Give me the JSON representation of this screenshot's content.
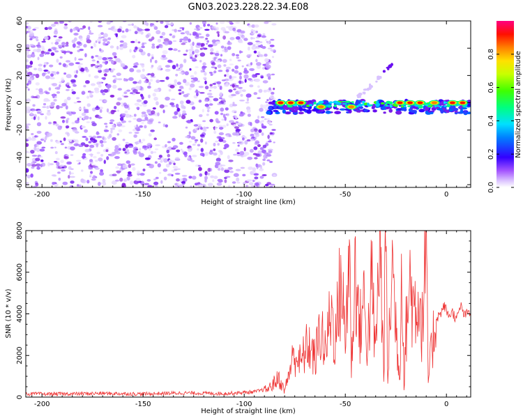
{
  "figure": {
    "title": "GN03.2023.228.22.34.E08"
  },
  "chart_data": [
    {
      "type": "heatmap",
      "xlabel": "Height of straight line (km)",
      "ylabel": "Frequency (Hz)",
      "xlim": [
        -208,
        12
      ],
      "ylim": [
        -62,
        60
      ],
      "xticks": [
        -200,
        -150,
        -100,
        -50,
        0
      ],
      "yticks": [
        -60,
        -40,
        -20,
        0,
        20,
        40,
        60
      ],
      "noise_region_x": [
        -208,
        -85
      ],
      "signal_band_x": [
        -88,
        12
      ],
      "signal_band_y": [
        -6,
        4
      ],
      "hot_spots": [
        {
          "x": -82,
          "y": 0,
          "value": 0.95
        },
        {
          "x": -77,
          "y": 0,
          "value": 0.95
        },
        {
          "x": -72,
          "y": 0,
          "value": 0.9
        },
        {
          "x": -62,
          "y": -3,
          "value": 0.8
        },
        {
          "x": -47,
          "y": -3,
          "value": 0.5
        },
        {
          "x": -23,
          "y": 0,
          "value": 0.9
        },
        {
          "x": -18,
          "y": 0,
          "value": 0.95
        },
        {
          "x": -13,
          "y": 0,
          "value": 0.95
        },
        {
          "x": -6,
          "y": 0,
          "value": 0.85
        },
        {
          "x": 3,
          "y": 0,
          "value": 0.9
        },
        {
          "x": 8,
          "y": 0,
          "value": 0.95
        }
      ],
      "streak": {
        "from": [
          -45,
          2
        ],
        "to": [
          -25,
          30
        ]
      },
      "colorbar": {
        "label": "Normalized spectral amplitude",
        "ticks": [
          0.0,
          0.2,
          0.4,
          0.6,
          0.8
        ],
        "range": [
          0,
          1
        ],
        "colors": [
          "#ffffff",
          "#b7b7ff",
          "#8a2be2",
          "#2b00ff",
          "#00c8ff",
          "#00ff80",
          "#66ff00",
          "#ffff00",
          "#ff8000",
          "#ff0000",
          "#ff007f"
        ]
      }
    },
    {
      "type": "line",
      "xlabel": "Height of straight line (km)",
      "ylabel": "SNR (10 * v/v)",
      "xlim": [
        -208,
        12
      ],
      "ylim": [
        0,
        8000
      ],
      "xticks": [
        -200,
        -150,
        -100,
        -50,
        0
      ],
      "yticks": [
        0,
        2000,
        4000,
        6000,
        8000
      ],
      "series": [
        {
          "color": "#ee3333",
          "x": [
            -208,
            -190,
            -170,
            -150,
            -130,
            -110,
            -95,
            -88,
            -83,
            -80,
            -77,
            -75,
            -72,
            -70,
            -68,
            -65,
            -62,
            -60,
            -57,
            -55,
            -52,
            -50,
            -48,
            -47,
            -45,
            -43,
            -41,
            -39,
            -37,
            -35,
            -33,
            -31,
            -30,
            -29,
            -27,
            -25,
            -23,
            -22,
            -21,
            -20,
            -18,
            -16,
            -14,
            -12,
            -10,
            -9,
            -7,
            -5,
            -3,
            -1,
            1,
            3,
            5,
            7,
            9,
            11,
            12
          ],
          "y": [
            150,
            150,
            180,
            150,
            200,
            170,
            250,
            400,
            900,
            300,
            1500,
            2100,
            1600,
            2200,
            2500,
            1800,
            3400,
            2100,
            4200,
            2700,
            5800,
            2500,
            7600,
            1500,
            6400,
            3000,
            4700,
            2500,
            5500,
            2000,
            7700,
            1200,
            7800,
            600,
            6600,
            3500,
            800,
            8000,
            400,
            3200,
            5500,
            4200,
            5000,
            3400,
            7000,
            800,
            2600,
            3800,
            4000,
            4400,
            3900,
            4100,
            3700,
            4400,
            3900,
            4100,
            4000
          ]
        }
      ]
    }
  ]
}
